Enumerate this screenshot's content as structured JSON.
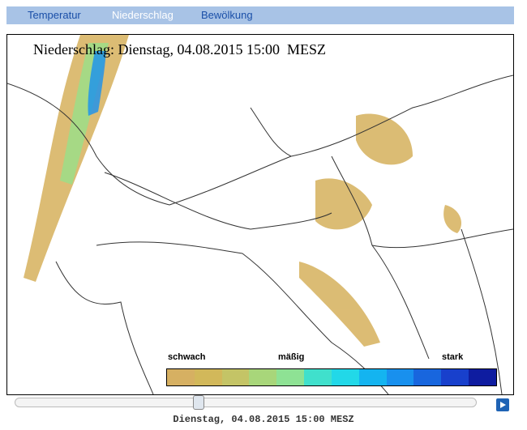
{
  "tabs": [
    "Temperatur",
    "Niederschlag",
    "Bewölkung"
  ],
  "map": {
    "title": "Niederschlag: Dienstag, 04.08.2015 15:00  MESZ",
    "legend": [
      "schwach",
      "mäßig",
      "stark"
    ]
  },
  "timestamp": "Dienstag, 04.08.2015 15:00 MESZ"
}
